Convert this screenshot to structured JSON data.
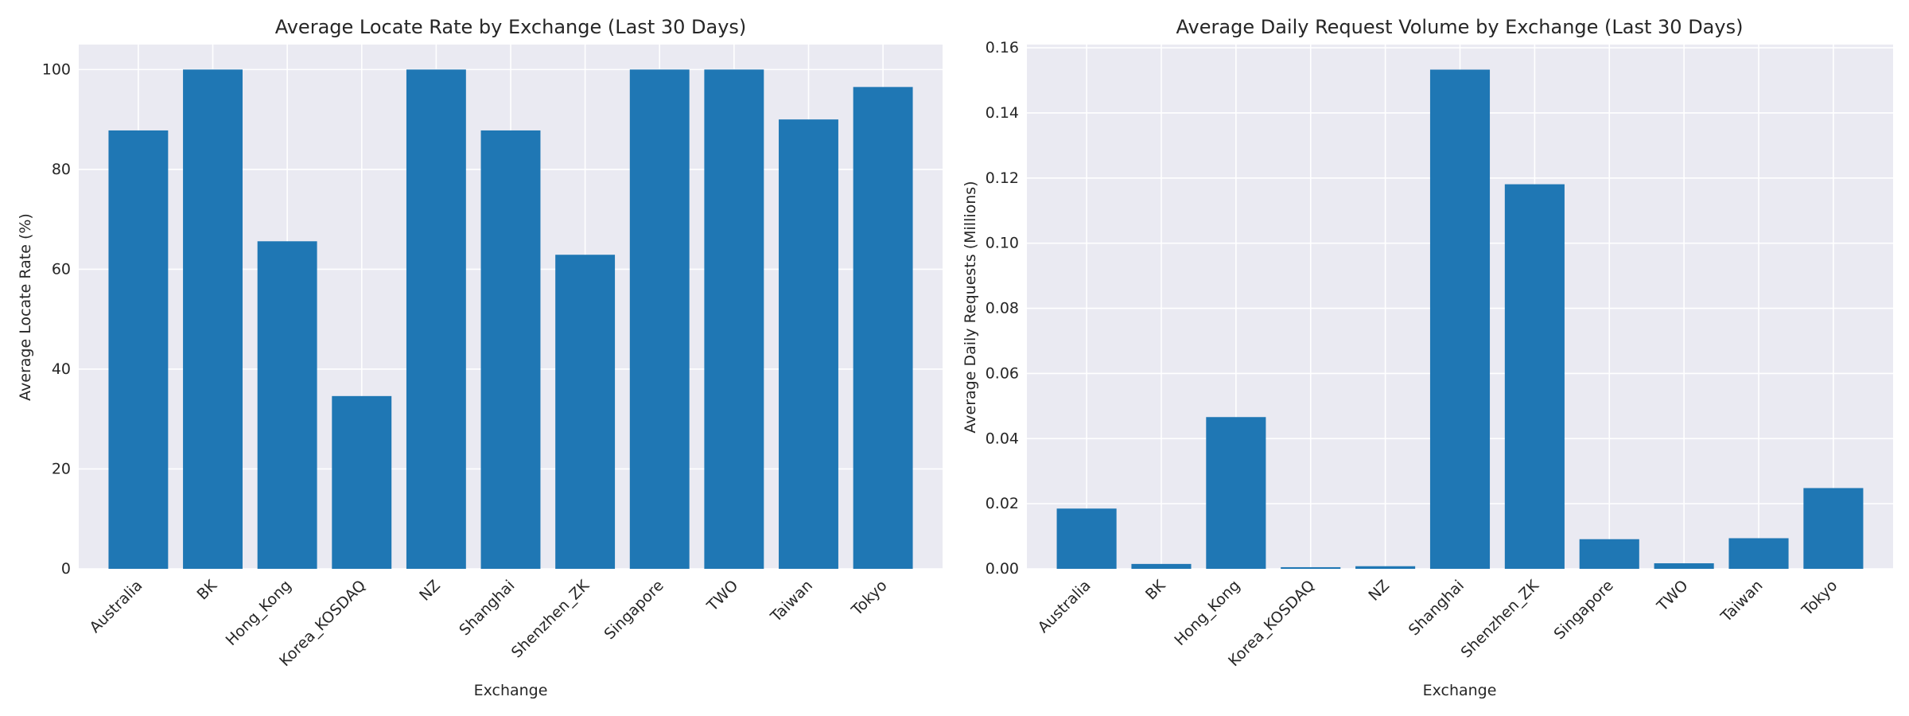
{
  "chart_data": [
    {
      "type": "bar",
      "title": "Average Locate Rate by Exchange (Last 30 Days)",
      "xlabel": "Exchange",
      "ylabel": "Average Locate Rate (%)",
      "categories": [
        "Australia",
        "BK",
        "Hong_Kong",
        "Korea_KOSDAQ",
        "NZ",
        "Shanghai",
        "Shenzhen_ZK",
        "Singapore",
        "TWO",
        "Taiwan",
        "Tokyo"
      ],
      "values": [
        87.8,
        100,
        65.6,
        34.6,
        100,
        87.8,
        62.9,
        100,
        100,
        90.0,
        96.5
      ],
      "ylim": [
        0,
        105
      ],
      "yticks": [
        0,
        20,
        40,
        60,
        80,
        100
      ],
      "ytick_labels": [
        "0",
        "20",
        "40",
        "60",
        "80",
        "100"
      ],
      "grid": true,
      "bar_color": "#1f77b4",
      "background": "#eaeaf2"
    },
    {
      "type": "bar",
      "title": "Average Daily Request Volume by Exchange (Last 30 Days)",
      "xlabel": "Exchange",
      "ylabel": "Average Daily Requests (Millions)",
      "categories": [
        "Australia",
        "BK",
        "Hong_Kong",
        "Korea_KOSDAQ",
        "NZ",
        "Shanghai",
        "Shenzhen_ZK",
        "Singapore",
        "TWO",
        "Taiwan",
        "Tokyo"
      ],
      "values": [
        0.0185,
        0.0015,
        0.0466,
        0.0005,
        0.0008,
        0.1533,
        0.1181,
        0.0091,
        0.0017,
        0.0094,
        0.0248
      ],
      "ylim": [
        0,
        0.161
      ],
      "yticks": [
        0,
        0.02,
        0.04,
        0.06,
        0.08,
        0.1,
        0.12,
        0.14,
        0.16
      ],
      "ytick_labels": [
        "0.00",
        "0.02",
        "0.04",
        "0.06",
        "0.08",
        "0.10",
        "0.12",
        "0.14",
        "0.16"
      ],
      "grid": true,
      "bar_color": "#1f77b4",
      "background": "#eaeaf2"
    }
  ]
}
